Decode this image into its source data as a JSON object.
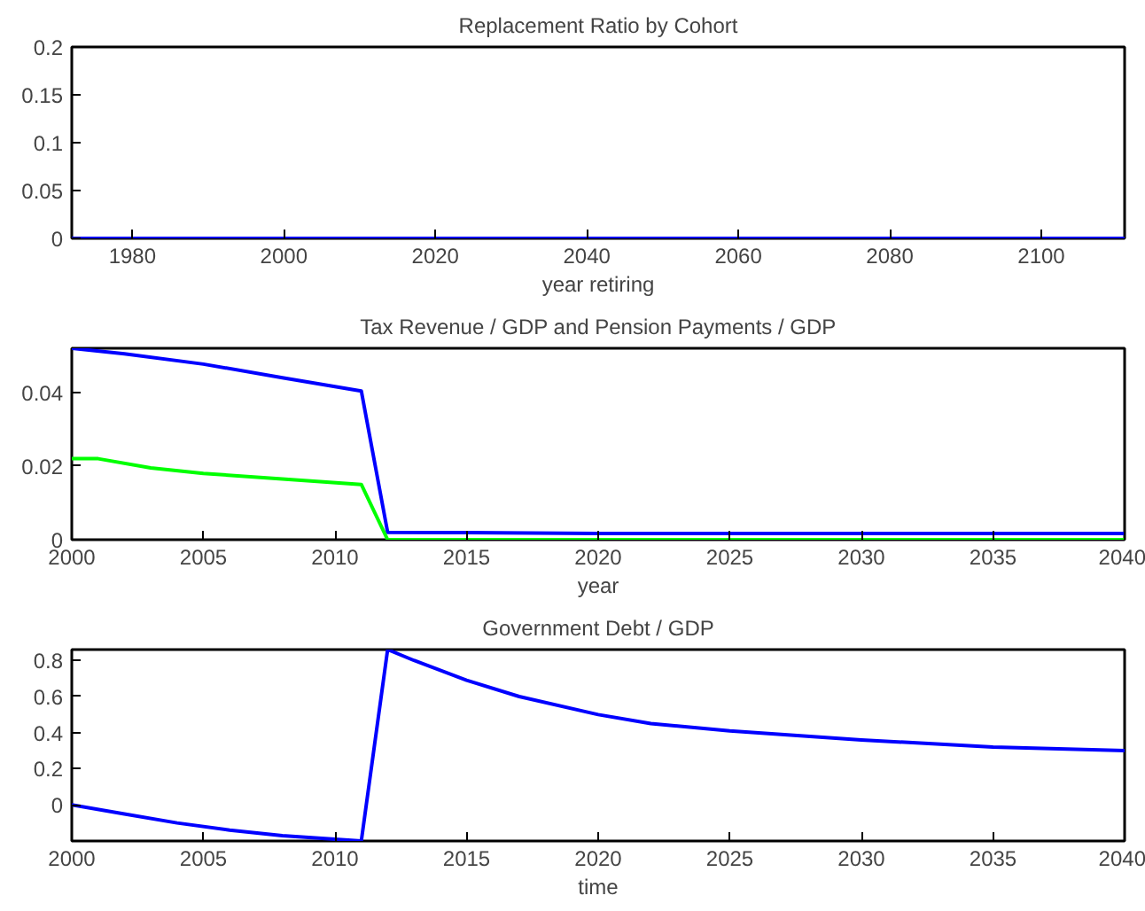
{
  "chart_data": [
    {
      "type": "line",
      "title": "Replacement Ratio by Cohort",
      "xlabel": "year retiring",
      "xlim": [
        1972,
        2111
      ],
      "xticks": [
        1980,
        2000,
        2020,
        2040,
        2060,
        2080,
        2100
      ],
      "ylim": [
        0,
        0.2
      ],
      "yticks": [
        0,
        0.05,
        0.1,
        0.15,
        0.2
      ],
      "series": [
        {
          "color": "#0000ff",
          "x": [
            1972,
            2111
          ],
          "values": [
            0,
            0
          ]
        }
      ]
    },
    {
      "type": "line",
      "title": "Tax Revenue / GDP and Pension Payments / GDP",
      "xlabel": "year",
      "xlim": [
        2000,
        2040
      ],
      "xticks": [
        2000,
        2005,
        2010,
        2015,
        2020,
        2025,
        2030,
        2035,
        2040
      ],
      "ylim": [
        0,
        0.052
      ],
      "yticks": [
        0,
        0.02,
        0.04
      ],
      "series": [
        {
          "color": "#0000ff",
          "x": [
            2000,
            2002,
            2005,
            2008,
            2011,
            2012,
            2015,
            2020,
            2040
          ],
          "values": [
            0.052,
            0.0505,
            0.0477,
            0.044,
            0.0404,
            0.002,
            0.0019,
            0.0017,
            0.0017
          ]
        },
        {
          "color": "#00ff00",
          "x": [
            2000,
            2001,
            2003,
            2005,
            2008,
            2011,
            2012,
            2040
          ],
          "values": [
            0.022,
            0.022,
            0.0195,
            0.018,
            0.0165,
            0.015,
            0,
            0
          ]
        }
      ]
    },
    {
      "type": "line",
      "title": "Government Debt / GDP",
      "xlabel": "time",
      "xlim": [
        2000,
        2040
      ],
      "xticks": [
        2000,
        2005,
        2010,
        2015,
        2020,
        2025,
        2030,
        2035,
        2040
      ],
      "ylim": [
        -0.2,
        0.86
      ],
      "yticks": [
        0,
        0.2,
        0.4,
        0.6,
        0.8
      ],
      "series": [
        {
          "color": "#0000ff",
          "x": [
            2000,
            2002,
            2004,
            2006,
            2008,
            2010,
            2011,
            2012,
            2013,
            2015,
            2017,
            2020,
            2022,
            2025,
            2030,
            2035,
            2040
          ],
          "values": [
            0,
            -0.05,
            -0.1,
            -0.14,
            -0.17,
            -0.19,
            -0.2,
            0.86,
            0.8,
            0.69,
            0.6,
            0.5,
            0.45,
            0.41,
            0.36,
            0.32,
            0.3
          ]
        }
      ]
    }
  ]
}
